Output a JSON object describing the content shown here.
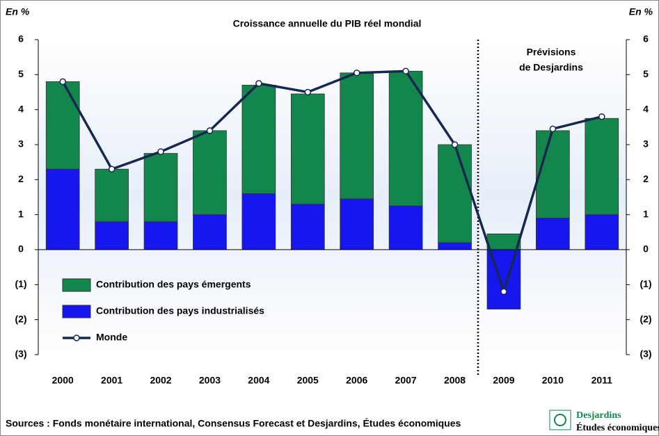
{
  "chart_data": {
    "type": "bar",
    "stacked": true,
    "title": "Croissance annuelle du PIB réel mondial",
    "ylabel": "En %",
    "y2label": "En %",
    "annotation": [
      "Prévisions",
      "de Desjardins"
    ],
    "source": "Sources : Fonds monétaire international, Consensus Forecast et Desjardins, Études économiques",
    "logo": {
      "name": "Desjardins",
      "subtitle": "Études économiques"
    },
    "categories": [
      "2000",
      "2001",
      "2002",
      "2003",
      "2004",
      "2005",
      "2006",
      "2007",
      "2008",
      "2009",
      "2010",
      "2011"
    ],
    "series": [
      {
        "name": "Contribution des pays émergents",
        "type": "bar",
        "color": "#13874b",
        "values": [
          2.5,
          1.5,
          1.95,
          2.4,
          3.1,
          3.15,
          3.6,
          3.85,
          2.8,
          0.45,
          2.5,
          2.75
        ]
      },
      {
        "name": "Contribution des pays industrialisés",
        "type": "bar",
        "color": "#1616ee",
        "values": [
          2.3,
          0.8,
          0.8,
          1.0,
          1.6,
          1.3,
          1.45,
          1.25,
          0.2,
          -1.7,
          0.9,
          1.0
        ]
      },
      {
        "name": "Monde",
        "type": "line",
        "color": "#172850",
        "values": [
          4.8,
          2.3,
          2.8,
          3.4,
          4.75,
          4.5,
          5.05,
          5.1,
          3.0,
          -1.2,
          3.45,
          3.8
        ]
      }
    ],
    "ylim": [
      -3,
      6
    ],
    "yticks": [
      {
        "value": -3,
        "label": "(3)"
      },
      {
        "value": -2,
        "label": "(2)"
      },
      {
        "value": -1,
        "label": "(1)"
      },
      0,
      1,
      2,
      3,
      4,
      5,
      6
    ],
    "y2lim": [
      -3,
      6
    ],
    "y2ticks": [
      {
        "value": -3,
        "label": "(3)"
      },
      {
        "value": -2,
        "label": "(2)"
      },
      {
        "value": -1,
        "label": "(1)"
      },
      0,
      1,
      2,
      3,
      4,
      5,
      6
    ]
  }
}
